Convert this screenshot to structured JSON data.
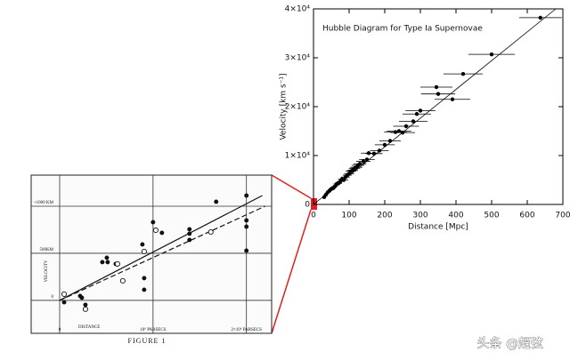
{
  "chart_data": [
    {
      "type": "scatter",
      "title": "Hubble Diagram for Type Ia Supernovae",
      "xlabel": "Distance [Mpc]",
      "ylabel": "Velocity [km s⁻¹]",
      "color": "#000000",
      "xlim": [
        0,
        700
      ],
      "ylim": [
        0,
        40000
      ],
      "xticks": [
        0,
        100,
        200,
        300,
        400,
        500,
        600,
        700
      ],
      "yticks": [
        0,
        {
          "value": 10000,
          "label": "1×10⁴"
        },
        {
          "value": 20000,
          "label": "2×10⁴"
        },
        {
          "value": 30000,
          "label": "3×10⁴"
        },
        {
          "value": 40000,
          "label": "4×10⁴"
        }
      ],
      "x": [
        30,
        35,
        40,
        45,
        50,
        55,
        60,
        65,
        70,
        75,
        80,
        85,
        90,
        95,
        100,
        105,
        110,
        115,
        120,
        125,
        130,
        140,
        150,
        155,
        170,
        185,
        200,
        215,
        230,
        240,
        250,
        260,
        280,
        290,
        300,
        345,
        350,
        390,
        420,
        500,
        637
      ],
      "values": [
        1500,
        2000,
        2500,
        2800,
        3200,
        3300,
        3700,
        4200,
        4300,
        4700,
        5200,
        5000,
        5600,
        6000,
        6300,
        6800,
        7000,
        7400,
        7600,
        8000,
        8300,
        8800,
        9200,
        10500,
        10400,
        11000,
        12200,
        13000,
        14800,
        15000,
        14700,
        16000,
        17000,
        18500,
        19200,
        24000,
        22600,
        21500,
        26700,
        30700,
        38200
      ],
      "xerr": [
        5,
        6,
        6,
        7,
        8,
        8,
        9,
        9,
        10,
        10,
        11,
        12,
        12,
        13,
        14,
        15,
        15,
        16,
        17,
        18,
        18,
        20,
        22,
        22,
        24,
        26,
        28,
        30,
        32,
        34,
        35,
        36,
        40,
        40,
        42,
        45,
        48,
        50,
        55,
        65,
        60
      ],
      "fit": {
        "x": [
          0,
          680
        ],
        "y": [
          0,
          40000
        ]
      }
    },
    {
      "type": "scatter",
      "xlabel": "DISTANCE",
      "ylabel": "VELOCITY",
      "caption": "FIGURE 1",
      "xlim": [
        -305000,
        2270000
      ],
      "ylim": [
        -350,
        1330
      ],
      "xticks": [
        0,
        {
          "value": 1000000,
          "label": "10⁶ PARSECS"
        },
        {
          "value": 2000000,
          "label": "2×10⁶ PARSECS"
        }
      ],
      "yticks": [
        0,
        {
          "value": 500,
          "label": "500KM"
        },
        {
          "value": 1000,
          "label": "+1000 KM"
        }
      ],
      "grid": true,
      "series": [
        {
          "marker": "filled",
          "color": "#111111",
          "x": [
            48000,
            219000,
            238000,
            276000,
            457000,
            505000,
            514000,
            600000,
            886000,
            905000,
            905000,
            1000000,
            1095000,
            1390000,
            1390000,
            1390000,
            1676000,
            2000000,
            2000000,
            2000000,
            2000000
          ],
          "values": [
            -20,
            47,
            28,
            -47,
            406,
            453,
            406,
            387,
            594,
            236,
            113,
            830,
            717,
            755,
            708,
            642,
            1047,
            1113,
            849,
            783,
            528
          ]
        },
        {
          "marker": "open",
          "color": "#111111",
          "x": [
            48000,
            276000,
            619000,
            676000,
            905000,
            1029000,
            1619000
          ],
          "values": [
            66,
            -94,
            387,
            208,
            519,
            745,
            726
          ]
        }
      ],
      "lines": [
        {
          "style": "solid",
          "x": [
            0,
            2170000
          ],
          "y": [
            0,
            1113
          ]
        },
        {
          "style": "dashed",
          "x": [
            0,
            2200000
          ],
          "y": [
            0,
            1000
          ]
        }
      ]
    }
  ],
  "watermark": "头条 @超弦"
}
